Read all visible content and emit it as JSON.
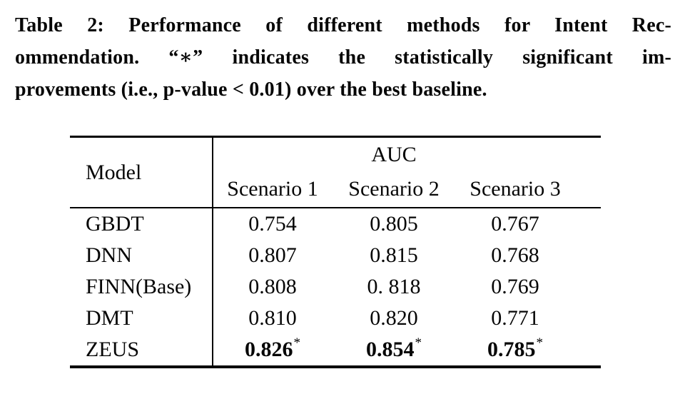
{
  "caption": {
    "label": "Table 2:",
    "lines": [
      "Table 2: Performance of different methods for Intent Rec-",
      "ommendation. “∗” indicates the statistically significant im-",
      "provements (i.e., p-value < 0.01) over the best baseline."
    ],
    "significance_marker": "∗",
    "p_value_threshold": "0.01"
  },
  "table": {
    "model_header": "Model",
    "group_header": "AUC",
    "subheaders": [
      "Scenario 1",
      "Scenario 2",
      "Scenario 3"
    ],
    "rows": [
      {
        "model": "GBDT",
        "values": [
          "0.754",
          "0.805",
          "0.767"
        ]
      },
      {
        "model": "DNN",
        "values": [
          "0.807",
          "0.815",
          "0.768"
        ]
      },
      {
        "model": "FINN(Base)",
        "values": [
          "0.808",
          "0. 818",
          "0.769"
        ]
      },
      {
        "model": "DMT",
        "values": [
          "0.810",
          "0.820",
          "0.771"
        ]
      },
      {
        "model": "ZEUS",
        "values": [
          "0.826",
          "0.854",
          "0.785"
        ],
        "sup": "*",
        "bold": true
      }
    ]
  },
  "colors": {
    "background": "#ffffff",
    "text": "#060606",
    "rule": "#000000"
  }
}
